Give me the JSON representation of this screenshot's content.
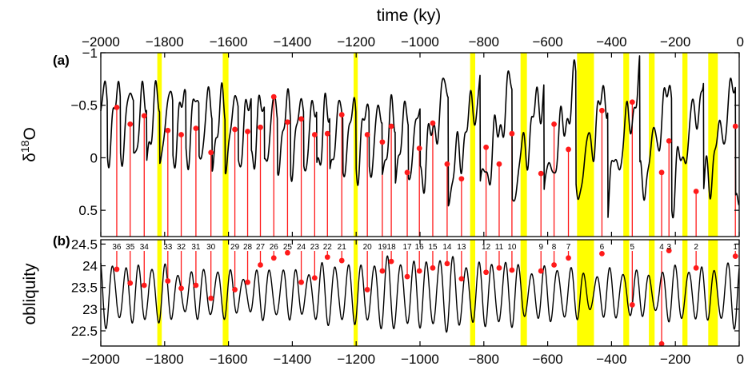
{
  "chart_data": {
    "type": "line",
    "xlabel": "time (ky)",
    "xlim": [
      -2000,
      0
    ],
    "x_ticks": [
      -2000,
      -1800,
      -1600,
      -1400,
      -1200,
      -1000,
      -800,
      -600,
      -400,
      -200,
      0
    ],
    "x_tick_labels": [
      "−2000",
      "−1800",
      "−1600",
      "−1400",
      "−1200",
      "−1000",
      "−800",
      "−600",
      "−400",
      "−200",
      "0"
    ],
    "panels": [
      {
        "label": "(a)",
        "ylabel": "δ",
        "ylabel_sup": "18",
        "ylabel_suffix": "O",
        "ylim": [
          0.75,
          -1
        ],
        "inverted": true,
        "y_ticks": [
          -1,
          -0.5,
          0,
          0.5
        ],
        "y_tick_labels": [
          "−1",
          "−0.5",
          "0",
          "0.5"
        ]
      },
      {
        "label": "(b)",
        "ylabel": "obliquity",
        "ylim": [
          22.15,
          24.6
        ],
        "y_ticks": [
          22.5,
          23,
          23.5,
          24,
          24.5
        ],
        "y_tick_labels": [
          "22.5",
          "23",
          "23.5",
          "24",
          "24.5"
        ]
      }
    ],
    "highlight_color": "#ffff00",
    "marker_color": "#ff1a1a",
    "line_color": "#000000",
    "highlight_bands": [
      [
        -1823,
        -1809
      ],
      [
        -1618,
        -1600
      ],
      [
        -1208,
        -1195
      ],
      [
        -843,
        -827
      ],
      [
        -685,
        -665
      ],
      [
        -508,
        -455
      ],
      [
        -363,
        -345
      ],
      [
        -283,
        -265
      ],
      [
        -178,
        -162
      ],
      [
        -97,
        -67
      ]
    ],
    "terminations": [
      {
        "label": "36",
        "t": -1950,
        "d18o": -0.48,
        "obl": 23.92
      },
      {
        "label": "35",
        "t": -1908,
        "d18o": -0.32,
        "obl": 23.6
      },
      {
        "label": "34",
        "t": -1864,
        "d18o": -0.4,
        "obl": 23.55
      },
      {
        "label": "33",
        "t": -1790,
        "d18o": -0.26,
        "obl": 23.65
      },
      {
        "label": "32",
        "t": -1748,
        "d18o": -0.22,
        "obl": 23.48
      },
      {
        "label": "31",
        "t": -1702,
        "d18o": -0.28,
        "obl": 23.55
      },
      {
        "label": "30",
        "t": -1655,
        "d18o": -0.05,
        "obl": 23.25
      },
      {
        "label": "29",
        "t": -1580,
        "d18o": -0.27,
        "obl": 23.45
      },
      {
        "label": "28",
        "t": -1540,
        "d18o": -0.25,
        "obl": 23.62
      },
      {
        "label": "27",
        "t": -1500,
        "d18o": -0.29,
        "obl": 24.02
      },
      {
        "label": "26",
        "t": -1458,
        "d18o": -0.58,
        "obl": 24.18
      },
      {
        "label": "25",
        "t": -1415,
        "d18o": -0.34,
        "obl": 24.3
      },
      {
        "label": "24",
        "t": -1372,
        "d18o": -0.37,
        "obl": 23.62
      },
      {
        "label": "23",
        "t": -1330,
        "d18o": -0.22,
        "obl": 23.72
      },
      {
        "label": "22",
        "t": -1290,
        "d18o": -0.23,
        "obl": 24.2
      },
      {
        "label": "21",
        "t": -1245,
        "d18o": -0.41,
        "obl": 24.12
      },
      {
        "label": "20",
        "t": -1165,
        "d18o": -0.22,
        "obl": 23.45
      },
      {
        "label": "19",
        "t": -1118,
        "d18o": -0.15,
        "obl": 23.88
      },
      {
        "label": "18",
        "t": -1090,
        "d18o": -0.3,
        "obl": 24.1
      },
      {
        "label": "17",
        "t": -1040,
        "d18o": 0.14,
        "obl": 23.75
      },
      {
        "label": "16",
        "t": -1002,
        "d18o": -0.09,
        "obl": 23.88
      },
      {
        "label": "15",
        "t": -960,
        "d18o": -0.33,
        "obl": 23.95
      },
      {
        "label": "14",
        "t": -915,
        "d18o": 0.06,
        "obl": 24.05
      },
      {
        "label": "13",
        "t": -870,
        "d18o": 0.2,
        "obl": 23.7
      },
      {
        "label": "12",
        "t": -793,
        "d18o": -0.1,
        "obl": 23.85
      },
      {
        "label": "11",
        "t": -752,
        "d18o": 0.06,
        "obl": 23.95
      },
      {
        "label": "10",
        "t": -712,
        "d18o": -0.23,
        "obl": 23.9
      },
      {
        "label": "9",
        "t": -621,
        "d18o": 0.15,
        "obl": 23.88
      },
      {
        "label": "8",
        "t": -580,
        "d18o": -0.32,
        "obl": 24.02
      },
      {
        "label": "7",
        "t": -535,
        "d18o": -0.08,
        "obl": 24.18
      },
      {
        "label": "6",
        "t": -430,
        "d18o": -0.45,
        "obl": 24.28
      },
      {
        "label": "5",
        "t": -335,
        "d18o": -0.53,
        "obl": 23.1
      },
      {
        "label": "4",
        "t": -243,
        "d18o": 0.14,
        "obl": 22.2
      },
      {
        "label": "3",
        "t": -220,
        "d18o": -0.16,
        "obl": 24.35
      },
      {
        "label": "2",
        "t": -135,
        "d18o": 0.32,
        "obl": 23.95
      },
      {
        "label": "1",
        "t": -12,
        "d18o": -0.3,
        "obl": 24.22
      }
    ]
  }
}
